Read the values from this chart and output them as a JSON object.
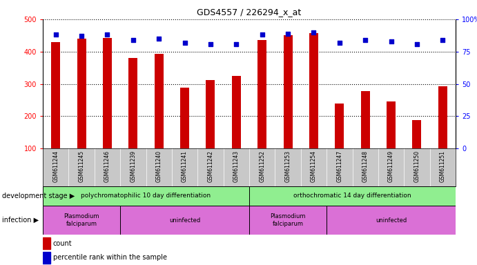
{
  "title": "GDS4557 / 226294_x_at",
  "samples": [
    "GSM611244",
    "GSM611245",
    "GSM611246",
    "GSM611239",
    "GSM611240",
    "GSM611241",
    "GSM611242",
    "GSM611243",
    "GSM611252",
    "GSM611253",
    "GSM611254",
    "GSM611247",
    "GSM611248",
    "GSM611249",
    "GSM611250",
    "GSM611251"
  ],
  "counts": [
    430,
    440,
    443,
    380,
    393,
    288,
    312,
    325,
    435,
    450,
    458,
    238,
    278,
    245,
    188,
    293
  ],
  "percentile_ranks": [
    88,
    87,
    88,
    84,
    85,
    82,
    81,
    81,
    88,
    89,
    90,
    82,
    84,
    83,
    81,
    84
  ],
  "y_min": 100,
  "y_max": 500,
  "y_ticks": [
    100,
    200,
    300,
    400,
    500
  ],
  "y2_ticks": [
    0,
    25,
    50,
    75,
    100
  ],
  "bar_color": "#cc0000",
  "dot_color": "#0000cc",
  "background_color": "#ffffff",
  "tick_label_area_color": "#c8c8c8",
  "stage_color": "#90ee90",
  "infect_color": "#da70d6",
  "stage_groups": [
    {
      "label": "polychromatophilic 10 day differentiation",
      "start": 0,
      "end": 8
    },
    {
      "label": "orthochromatic 14 day differentiation",
      "start": 8,
      "end": 16
    }
  ],
  "infection_groups": [
    {
      "label": "Plasmodium\nfalciparum",
      "start": 0,
      "end": 3
    },
    {
      "label": "uninfected",
      "start": 3,
      "end": 8
    },
    {
      "label": "Plasmodium\nfalciparum",
      "start": 8,
      "end": 11
    },
    {
      "label": "uninfected",
      "start": 11,
      "end": 16
    }
  ]
}
